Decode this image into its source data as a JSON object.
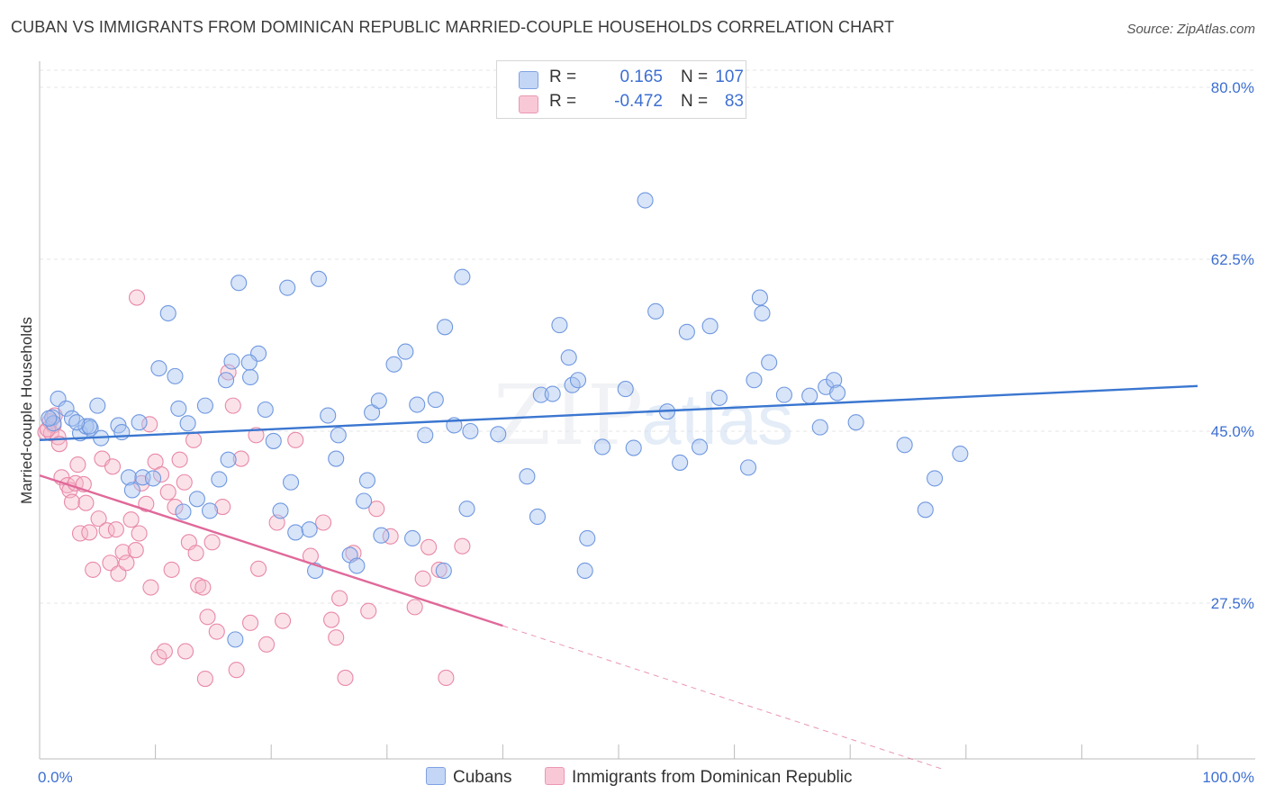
{
  "title": "CUBAN VS IMMIGRANTS FROM DOMINICAN REPUBLIC MARRIED-COUPLE HOUSEHOLDS CORRELATION CHART",
  "source": "Source: ZipAtlas.com",
  "watermark": {
    "zip": "ZIP",
    "atlas": "atlas"
  },
  "legend": {
    "r_label": "R =",
    "n_label": "N =",
    "rows": [
      {
        "r": "0.165",
        "n": "107",
        "color": "#a9c4f0",
        "stroke": "#6f98e0"
      },
      {
        "r": "-0.472",
        "n": "83",
        "color": "#f6b6c9",
        "stroke": "#e889a8"
      }
    ]
  },
  "bottom_legend": [
    {
      "label": "Cubans",
      "color": "#a9c4f0",
      "stroke": "#6f98e0"
    },
    {
      "label": "Immigrants from Dominican Republic",
      "color": "#f6b6c9",
      "stroke": "#e889a8"
    }
  ],
  "chart_data": {
    "type": "scatter",
    "title": "CUBAN VS IMMIGRANTS FROM DOMINICAN REPUBLIC MARRIED-COUPLE HOUSEHOLDS CORRELATION CHART",
    "xlabel": "",
    "ylabel": "Married-couple Households",
    "xlim": [
      0,
      100
    ],
    "ylim": [
      10,
      82
    ],
    "x_tick_labels": [
      "0.0%",
      "100.0%"
    ],
    "y_ticks": [
      27.5,
      45.0,
      62.5,
      80.0
    ],
    "y_tick_labels": [
      "27.5%",
      "45.0%",
      "62.5%",
      "80.0%"
    ],
    "grid": true,
    "legend_position": "top-center",
    "colors": {
      "cubans": "#3a76d0",
      "dominican": "#e0699a",
      "axis_label": "#3d6fd1"
    },
    "series": [
      {
        "name": "Cubans",
        "trend": {
          "x0": 0,
          "y0": 44.1,
          "x1": 100,
          "y1": 49.6
        },
        "points": [
          [
            1.1,
            46.4
          ],
          [
            1.6,
            48.3
          ],
          [
            2.3,
            47.3
          ],
          [
            1.2,
            45.8
          ],
          [
            2.8,
            46.3
          ],
          [
            3.5,
            44.8
          ],
          [
            4.0,
            45.5
          ],
          [
            4.4,
            45.3
          ],
          [
            5.0,
            47.6
          ],
          [
            5.3,
            44.3
          ],
          [
            6.8,
            45.6
          ],
          [
            7.1,
            44.9
          ],
          [
            7.7,
            40.3
          ],
          [
            8.6,
            45.9
          ],
          [
            8.0,
            39.0
          ],
          [
            8.9,
            40.3
          ],
          [
            9.8,
            40.2
          ],
          [
            10.3,
            51.4
          ],
          [
            11.1,
            57.0
          ],
          [
            12.0,
            47.3
          ],
          [
            11.7,
            50.6
          ],
          [
            12.8,
            45.8
          ],
          [
            13.6,
            38.1
          ],
          [
            14.7,
            36.9
          ],
          [
            14.3,
            47.6
          ],
          [
            15.5,
            40.1
          ],
          [
            16.3,
            42.1
          ],
          [
            16.6,
            52.1
          ],
          [
            16.1,
            50.2
          ],
          [
            17.2,
            60.1
          ],
          [
            18.2,
            50.5
          ],
          [
            18.9,
            52.9
          ],
          [
            19.5,
            47.2
          ],
          [
            20.2,
            44.0
          ],
          [
            20.8,
            36.9
          ],
          [
            21.7,
            39.8
          ],
          [
            21.4,
            59.6
          ],
          [
            22.1,
            34.7
          ],
          [
            23.3,
            35.0
          ],
          [
            23.8,
            30.8
          ],
          [
            24.1,
            60.5
          ],
          [
            24.9,
            46.6
          ],
          [
            25.6,
            42.2
          ],
          [
            25.8,
            44.6
          ],
          [
            26.8,
            32.4
          ],
          [
            27.4,
            31.3
          ],
          [
            28.0,
            37.9
          ],
          [
            28.3,
            40.0
          ],
          [
            28.7,
            46.9
          ],
          [
            29.3,
            48.1
          ],
          [
            29.5,
            34.4
          ],
          [
            30.6,
            51.8
          ],
          [
            31.6,
            53.1
          ],
          [
            32.2,
            34.1
          ],
          [
            32.6,
            47.7
          ],
          [
            33.3,
            44.6
          ],
          [
            34.2,
            48.2
          ],
          [
            35.0,
            55.6
          ],
          [
            34.9,
            30.8
          ],
          [
            35.8,
            45.6
          ],
          [
            36.5,
            60.7
          ],
          [
            36.9,
            37.1
          ],
          [
            37.2,
            45.0
          ],
          [
            39.6,
            44.7
          ],
          [
            42.1,
            40.4
          ],
          [
            43.0,
            36.3
          ],
          [
            43.3,
            48.7
          ],
          [
            44.3,
            48.8
          ],
          [
            44.9,
            55.8
          ],
          [
            45.7,
            52.5
          ],
          [
            46.0,
            49.7
          ],
          [
            46.5,
            50.2
          ],
          [
            47.3,
            34.1
          ],
          [
            48.6,
            43.4
          ],
          [
            50.6,
            49.3
          ],
          [
            51.3,
            43.3
          ],
          [
            52.3,
            68.5
          ],
          [
            53.2,
            57.2
          ],
          [
            54.2,
            47.0
          ],
          [
            55.3,
            41.8
          ],
          [
            55.9,
            55.1
          ],
          [
            57.0,
            43.4
          ],
          [
            57.9,
            55.7
          ],
          [
            58.7,
            48.4
          ],
          [
            61.2,
            41.3
          ],
          [
            61.7,
            50.2
          ],
          [
            62.2,
            58.6
          ],
          [
            62.4,
            57.0
          ],
          [
            63.0,
            52.0
          ],
          [
            64.3,
            48.7
          ],
          [
            67.4,
            45.4
          ],
          [
            67.9,
            49.5
          ],
          [
            68.6,
            50.2
          ],
          [
            68.9,
            48.9
          ],
          [
            70.5,
            45.9
          ],
          [
            74.7,
            43.6
          ],
          [
            76.5,
            37.0
          ],
          [
            77.3,
            40.2
          ],
          [
            79.5,
            42.7
          ],
          [
            4.3,
            45.5
          ],
          [
            0.8,
            46.3
          ],
          [
            12.4,
            36.8
          ],
          [
            18.1,
            52.0
          ],
          [
            47.1,
            30.8
          ],
          [
            3.2,
            45.9
          ],
          [
            16.9,
            23.8
          ],
          [
            66.5,
            48.6
          ]
        ]
      },
      {
        "name": "Immigrants from Dominican Republic",
        "trend": {
          "x0": 0,
          "y0": 40.5,
          "x1": 40,
          "y1": 25.2,
          "dash_to_x": 78,
          "dash_to_y": 10.6
        },
        "points": [
          [
            0.5,
            44.9
          ],
          [
            0.9,
            46.0
          ],
          [
            1.2,
            45.6
          ],
          [
            1.0,
            44.8
          ],
          [
            1.3,
            46.6
          ],
          [
            1.6,
            44.4
          ],
          [
            1.7,
            43.7
          ],
          [
            1.9,
            40.3
          ],
          [
            2.4,
            39.5
          ],
          [
            2.6,
            39.0
          ],
          [
            2.8,
            37.8
          ],
          [
            3.1,
            39.7
          ],
          [
            3.3,
            41.6
          ],
          [
            3.5,
            34.6
          ],
          [
            3.8,
            39.6
          ],
          [
            4.0,
            37.7
          ],
          [
            4.3,
            34.7
          ],
          [
            4.6,
            30.9
          ],
          [
            5.1,
            36.1
          ],
          [
            5.4,
            42.2
          ],
          [
            5.8,
            34.9
          ],
          [
            6.1,
            31.6
          ],
          [
            6.3,
            41.4
          ],
          [
            6.6,
            35.0
          ],
          [
            6.8,
            30.5
          ],
          [
            7.2,
            32.7
          ],
          [
            7.5,
            31.6
          ],
          [
            7.9,
            36.0
          ],
          [
            8.3,
            32.9
          ],
          [
            8.6,
            34.6
          ],
          [
            8.8,
            39.7
          ],
          [
            9.2,
            37.6
          ],
          [
            9.5,
            45.7
          ],
          [
            9.6,
            29.1
          ],
          [
            10.0,
            41.9
          ],
          [
            10.3,
            22.0
          ],
          [
            10.5,
            40.6
          ],
          [
            10.8,
            22.6
          ],
          [
            11.1,
            38.8
          ],
          [
            11.4,
            30.9
          ],
          [
            11.7,
            37.3
          ],
          [
            12.1,
            42.1
          ],
          [
            12.5,
            39.8
          ],
          [
            12.6,
            22.6
          ],
          [
            12.9,
            33.7
          ],
          [
            13.3,
            44.1
          ],
          [
            13.5,
            32.6
          ],
          [
            13.7,
            29.3
          ],
          [
            14.1,
            29.1
          ],
          [
            14.5,
            26.1
          ],
          [
            14.3,
            19.8
          ],
          [
            14.9,
            33.7
          ],
          [
            15.3,
            24.6
          ],
          [
            15.8,
            37.3
          ],
          [
            16.3,
            51.0
          ],
          [
            16.7,
            47.6
          ],
          [
            17.0,
            20.7
          ],
          [
            17.4,
            42.2
          ],
          [
            18.2,
            25.5
          ],
          [
            18.7,
            44.6
          ],
          [
            18.9,
            31.0
          ],
          [
            19.6,
            23.3
          ],
          [
            20.5,
            35.7
          ],
          [
            21.0,
            25.7
          ],
          [
            22.1,
            44.1
          ],
          [
            23.4,
            32.3
          ],
          [
            24.5,
            35.7
          ],
          [
            25.2,
            25.8
          ],
          [
            25.6,
            24.0
          ],
          [
            25.9,
            28.0
          ],
          [
            26.4,
            19.9
          ],
          [
            27.1,
            32.6
          ],
          [
            28.4,
            26.7
          ],
          [
            29.1,
            37.1
          ],
          [
            30.3,
            34.3
          ],
          [
            32.4,
            27.1
          ],
          [
            33.1,
            30.0
          ],
          [
            33.6,
            33.2
          ],
          [
            34.5,
            30.9
          ],
          [
            35.1,
            19.9
          ],
          [
            36.5,
            33.3
          ],
          [
            0.7,
            45.2
          ],
          [
            8.4,
            58.6
          ]
        ]
      }
    ]
  }
}
